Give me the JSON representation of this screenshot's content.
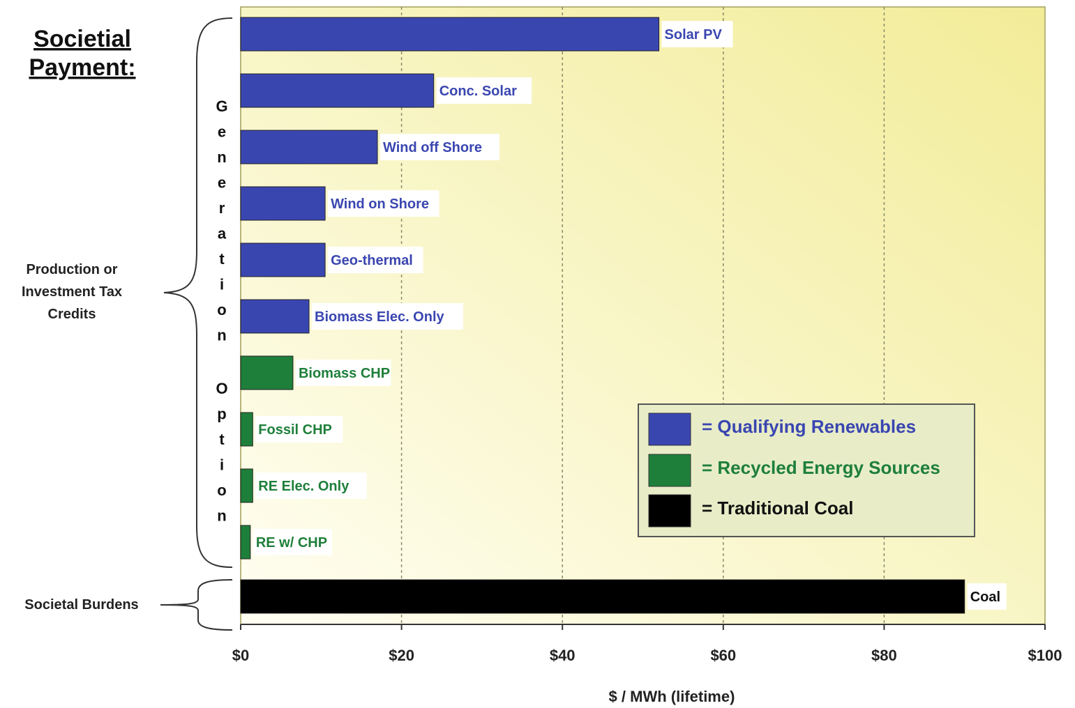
{
  "title": {
    "line1": "Societial",
    "line2": "Payment:"
  },
  "left_labels": {
    "credits_line1": "Production or",
    "credits_line2": "Investment Tax",
    "credits_line3": "Credits",
    "burdens": "Societal Burdens",
    "vertical_word1": "Generation",
    "vertical_word2": "Option"
  },
  "legend": {
    "items": [
      {
        "label": "= Qualifying Renewables",
        "color": "#3a46b0",
        "text_color": "#3a46b0"
      },
      {
        "label": "= Recycled Energy Sources",
        "color": "#1e7f3a",
        "text_color": "#1e7f3a"
      },
      {
        "label": "= Traditional Coal",
        "color": "#000000",
        "text_color": "#111111"
      }
    ]
  },
  "colors": {
    "renewable": "#3a46b0",
    "recycled": "#1e7f3a",
    "coal": "#000000",
    "plot_bg_light": "#fffef0",
    "plot_bg_dark": "#f3ee9a"
  },
  "chart_data": {
    "type": "bar",
    "orientation": "horizontal",
    "xlabel": "$ / MWh (lifetime)",
    "xlim": [
      0,
      100
    ],
    "xticks": [
      "$0",
      "$20",
      "$40",
      "$60",
      "$80",
      "$100"
    ],
    "grid": "vertical dashed",
    "legend_position": "bottom-right",
    "categories": [
      "Solar PV",
      "Conc. Solar",
      "Wind off Shore",
      "Wind on Shore",
      "Geo-thermal",
      "Biomass Elec. Only",
      "Biomass CHP",
      "Fossil CHP",
      "RE Elec. Only",
      "RE w/ CHP",
      "Coal"
    ],
    "values": [
      52,
      24,
      17,
      10.5,
      10.5,
      8.5,
      6.5,
      1.5,
      1.5,
      1.2,
      90
    ],
    "groups": [
      "renewable",
      "renewable",
      "renewable",
      "renewable",
      "renewable",
      "renewable",
      "recycled",
      "recycled",
      "recycled",
      "recycled",
      "coal"
    ]
  }
}
